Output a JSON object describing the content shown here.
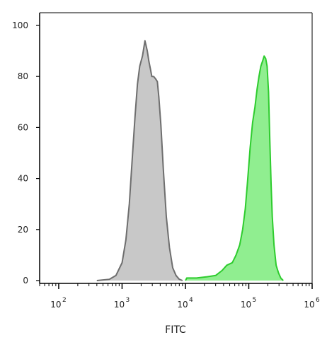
{
  "chart_data": {
    "type": "area",
    "title": "",
    "xlabel": "FITC",
    "ylabel": "",
    "x_scale": "log",
    "xlim": [
      50,
      1000000
    ],
    "ylim": [
      0,
      100
    ],
    "grid": false,
    "legend": "none",
    "x_ticks": [
      {
        "base": "10",
        "exp": "2",
        "value": 100
      },
      {
        "base": "10",
        "exp": "3",
        "value": 1000
      },
      {
        "base": "10",
        "exp": "4",
        "value": 10000
      },
      {
        "base": "10",
        "exp": "5",
        "value": 100000
      },
      {
        "base": "10",
        "exp": "6",
        "value": 1000000
      }
    ],
    "y_ticks": [
      {
        "label": "0",
        "value": 0
      },
      {
        "label": "20",
        "value": 20
      },
      {
        "label": "40",
        "value": 40
      },
      {
        "label": "60",
        "value": 60
      },
      {
        "label": "80",
        "value": 80
      },
      {
        "label": "100",
        "value": 100
      }
    ],
    "series": [
      {
        "fill": "#c8c8c8",
        "stroke": "#6e6e6e",
        "points": [
          [
            400,
            0
          ],
          [
            630,
            0.5
          ],
          [
            800,
            2
          ],
          [
            1000,
            7
          ],
          [
            1150,
            16
          ],
          [
            1300,
            30
          ],
          [
            1450,
            48
          ],
          [
            1600,
            64
          ],
          [
            1750,
            77
          ],
          [
            1900,
            84
          ],
          [
            2100,
            88
          ],
          [
            2300,
            94
          ],
          [
            2500,
            90
          ],
          [
            2650,
            86
          ],
          [
            2800,
            83
          ],
          [
            2950,
            80
          ],
          [
            3150,
            80
          ],
          [
            3400,
            79
          ],
          [
            3600,
            78
          ],
          [
            3800,
            72
          ],
          [
            4100,
            61
          ],
          [
            4500,
            43
          ],
          [
            5000,
            25
          ],
          [
            5600,
            13
          ],
          [
            6300,
            5
          ],
          [
            7100,
            2
          ],
          [
            8000,
            0.5
          ],
          [
            9000,
            0
          ]
        ]
      },
      {
        "fill": "#90ee90",
        "stroke": "#2ecc2e",
        "points": [
          [
            10000,
            0
          ],
          [
            10500,
            1
          ],
          [
            15000,
            1
          ],
          [
            22000,
            1.5
          ],
          [
            30000,
            2
          ],
          [
            38000,
            4
          ],
          [
            45000,
            6
          ],
          [
            55000,
            7
          ],
          [
            63000,
            10
          ],
          [
            72000,
            14
          ],
          [
            80000,
            20
          ],
          [
            88000,
            28
          ],
          [
            95000,
            38
          ],
          [
            105000,
            52
          ],
          [
            115000,
            62
          ],
          [
            125000,
            68
          ],
          [
            135000,
            75
          ],
          [
            145000,
            80
          ],
          [
            155000,
            84
          ],
          [
            165000,
            86
          ],
          [
            175000,
            88
          ],
          [
            185000,
            87
          ],
          [
            195000,
            84
          ],
          [
            205000,
            74
          ],
          [
            215000,
            55
          ],
          [
            225000,
            38
          ],
          [
            235000,
            25
          ],
          [
            250000,
            14
          ],
          [
            270000,
            6
          ],
          [
            295000,
            3
          ],
          [
            320000,
            1
          ],
          [
            350000,
            0
          ]
        ]
      }
    ]
  }
}
